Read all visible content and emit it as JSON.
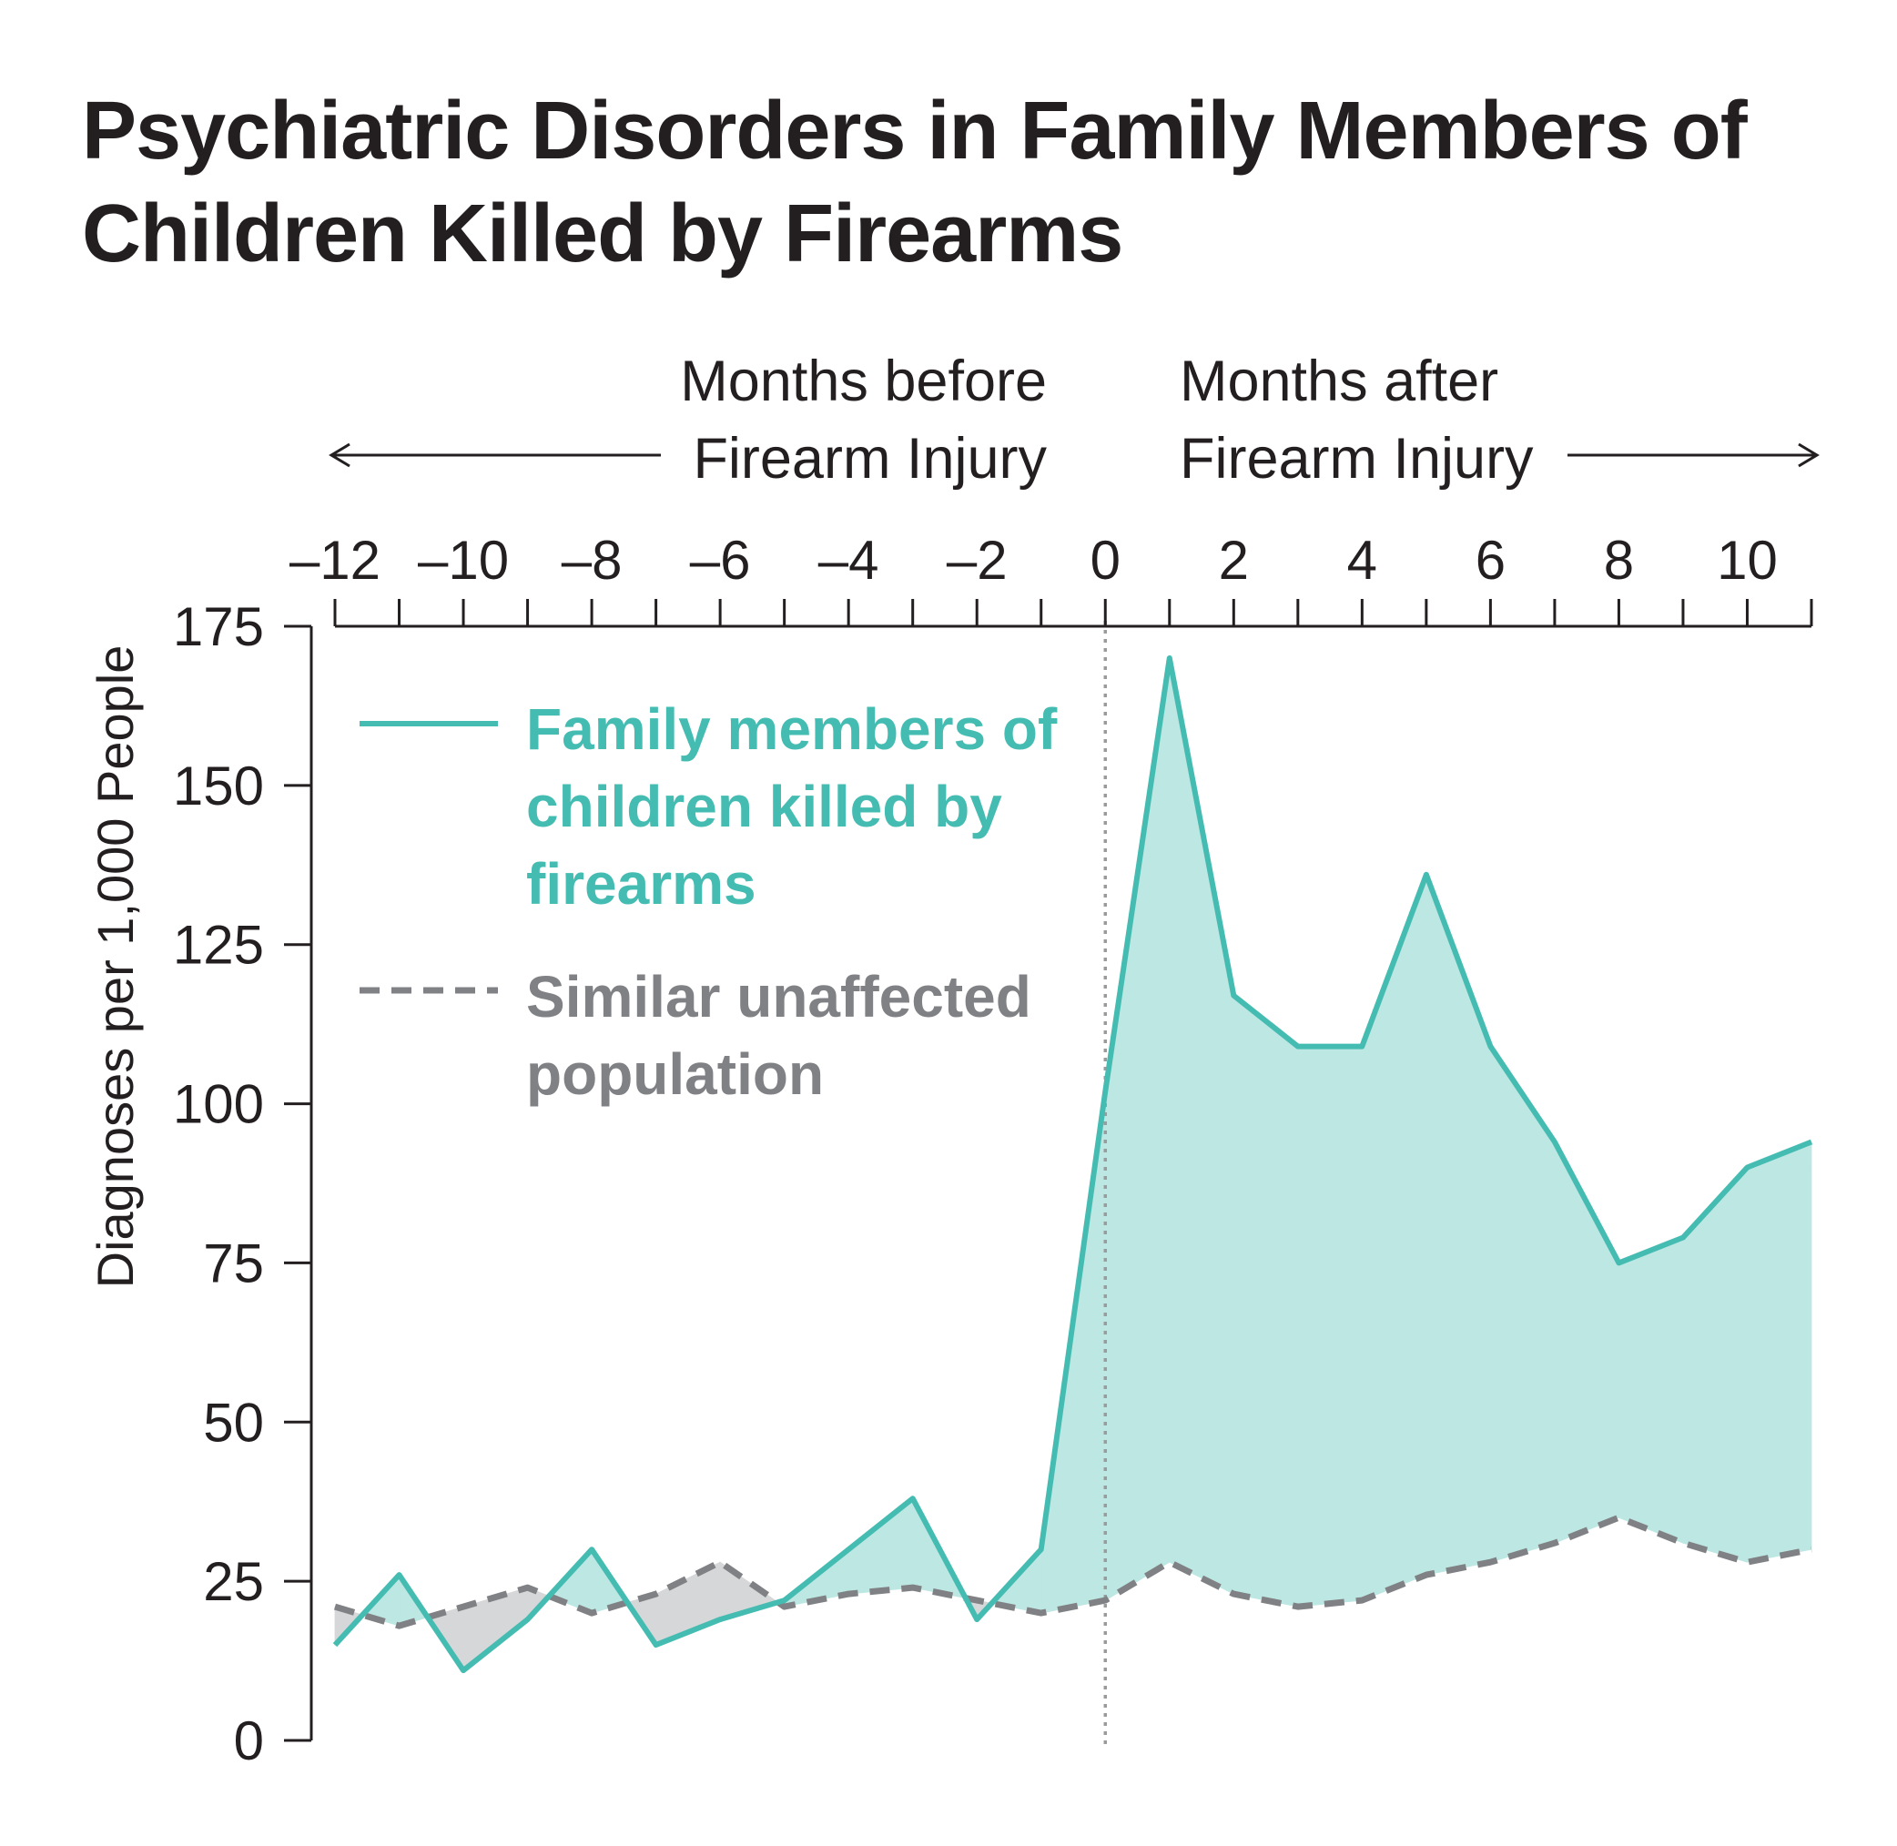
{
  "chart_data": {
    "type": "area",
    "title": "Psychiatric Disorders in Family Members of Children Killed by Firearms",
    "xlabel_before": [
      "Months before",
      "Firearm Injury"
    ],
    "xlabel_after": [
      "Months after",
      "Firearm Injury"
    ],
    "ylabel": "Diagnoses per 1,000 People",
    "x": [
      -12,
      -11,
      -10,
      -9,
      -8,
      -7,
      -6,
      -5,
      -4,
      -3,
      -2,
      -1,
      0,
      1,
      2,
      3,
      4,
      5,
      6,
      7,
      8,
      9,
      10,
      11
    ],
    "xlim": [
      -12,
      11
    ],
    "ylim": [
      0,
      175
    ],
    "x_ticks": [
      -12,
      -10,
      -8,
      -6,
      -4,
      -2,
      0,
      2,
      4,
      6,
      8,
      10
    ],
    "x_tick_labels": [
      "–12",
      "–10",
      "–8",
      "–6",
      "–4",
      "–2",
      "0",
      "2",
      "4",
      "6",
      "8",
      "10"
    ],
    "y_ticks": [
      0,
      25,
      50,
      75,
      100,
      125,
      150,
      175
    ],
    "y_tick_labels": [
      "0",
      "25",
      "50",
      "75",
      "100",
      "125",
      "150",
      "175"
    ],
    "event_x": 0,
    "grid": false,
    "legend_position": "top-left",
    "series": [
      {
        "name": "Family members of children killed by firearms",
        "legend_lines": [
          "Family members of",
          "children killed by",
          "firearms"
        ],
        "color": "#45bcb2",
        "fill": "#bde7e3",
        "style": "solid",
        "values": [
          15,
          26,
          11,
          19,
          30,
          15,
          19,
          22,
          30,
          38,
          19,
          30,
          102,
          170,
          117,
          109,
          109,
          136,
          109,
          94,
          75,
          79,
          90,
          94
        ]
      },
      {
        "name": "Similar unaffected population",
        "legend_lines": [
          "Similar unaffected",
          "population"
        ],
        "color": "#808184",
        "fill": "#d6d7d8",
        "style": "dashed",
        "values": [
          21,
          18,
          21,
          24,
          20,
          23,
          28,
          21,
          23,
          24,
          22,
          20,
          22,
          28,
          23,
          21,
          22,
          26,
          28,
          31,
          35,
          31,
          28,
          30
        ]
      }
    ]
  }
}
